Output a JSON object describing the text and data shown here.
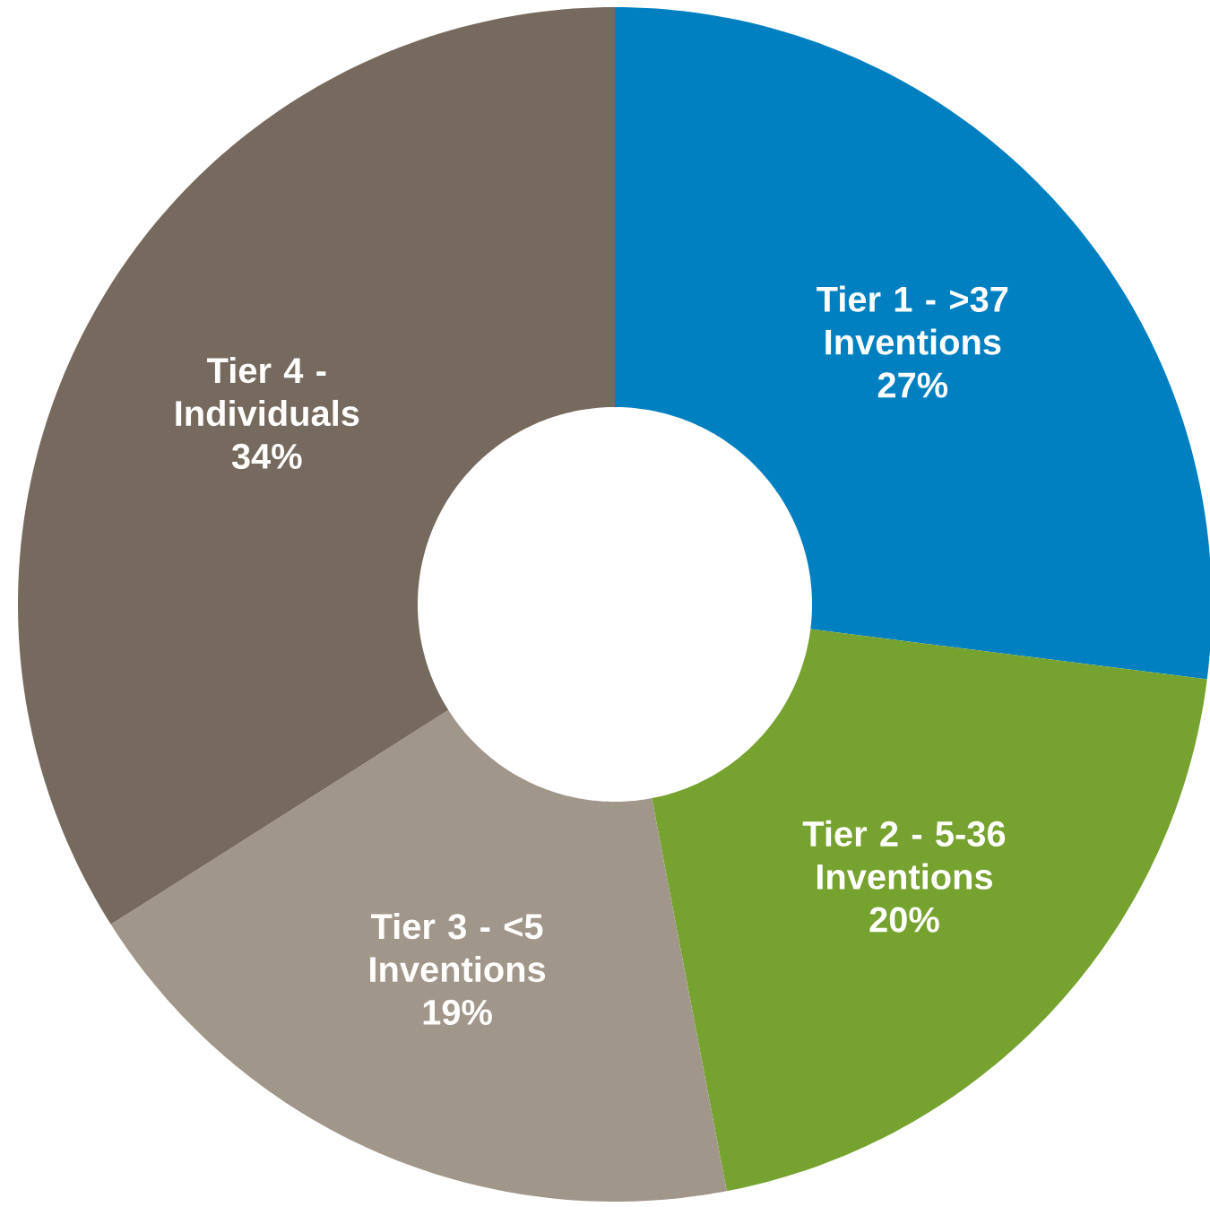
{
  "chart_data": {
    "type": "donut",
    "categories": [
      "Tier 1 - >37 Inventions",
      "Tier 2 - 5-36 Inventions",
      "Tier 3 - <5 Inventions",
      "Tier 4 - Individuals"
    ],
    "values": [
      27,
      20,
      19,
      34
    ],
    "value_labels": [
      "27%",
      "20%",
      "19%",
      "34%"
    ],
    "colors": [
      "#0080c0",
      "#76a22f",
      "#a0968a",
      "#766a5e"
    ]
  }
}
